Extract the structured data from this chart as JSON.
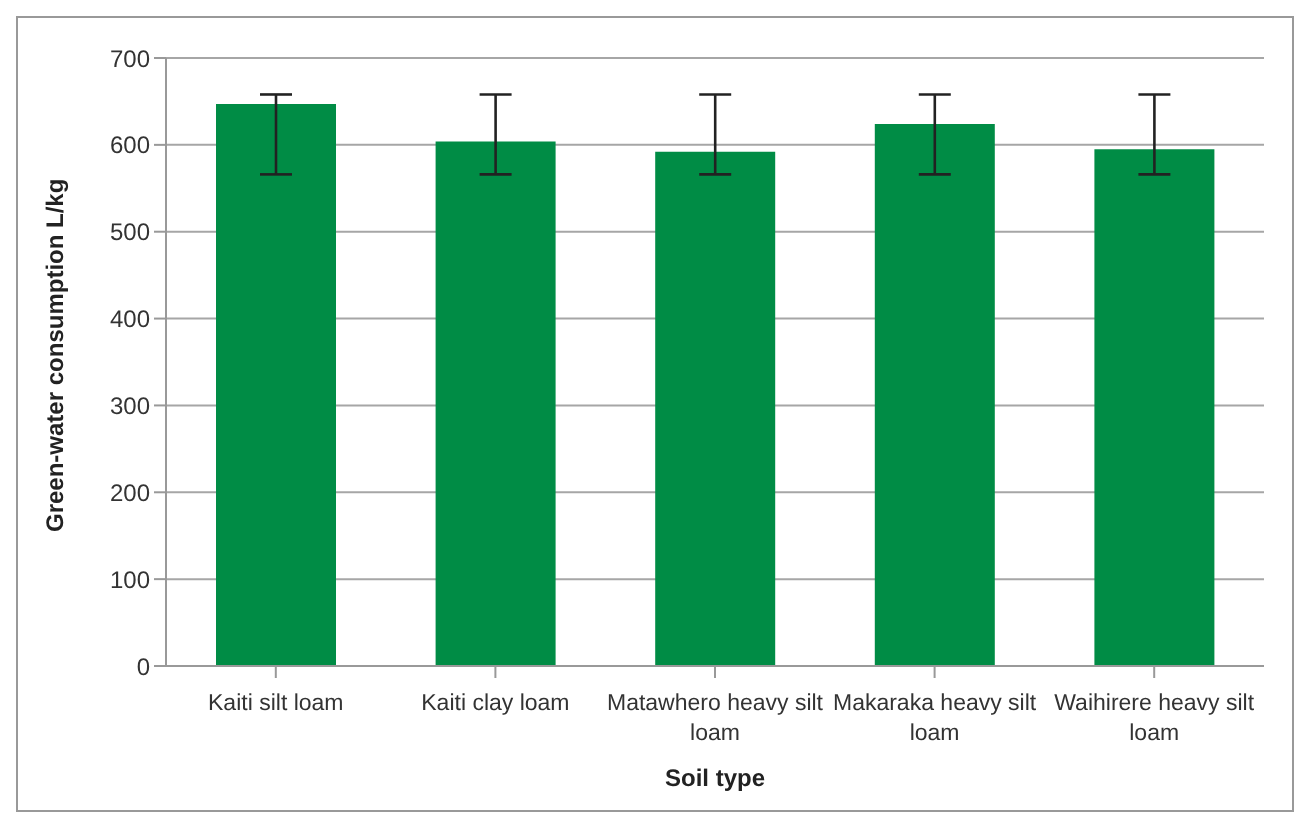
{
  "chart_data": {
    "type": "bar",
    "xlabel": "Soil type",
    "ylabel": "Green-water consumption  L/kg",
    "categories": [
      "Kaiti silt loam",
      "Kaiti clay loam",
      "Matawhero heavy silt loam",
      "Makaraka heavy  silt loam",
      "Waihirere heavy silt loam"
    ],
    "values": [
      647,
      604,
      592,
      624,
      595
    ],
    "errors": [
      [
        566,
        658
      ],
      [
        566,
        658
      ],
      [
        566,
        658
      ],
      [
        566,
        658
      ],
      [
        566,
        658
      ]
    ],
    "color": "#008c45",
    "ylim": [
      0,
      700
    ],
    "yticks": [
      0,
      100,
      200,
      300,
      400,
      500,
      600,
      700
    ],
    "grid": "y",
    "legend": false
  }
}
